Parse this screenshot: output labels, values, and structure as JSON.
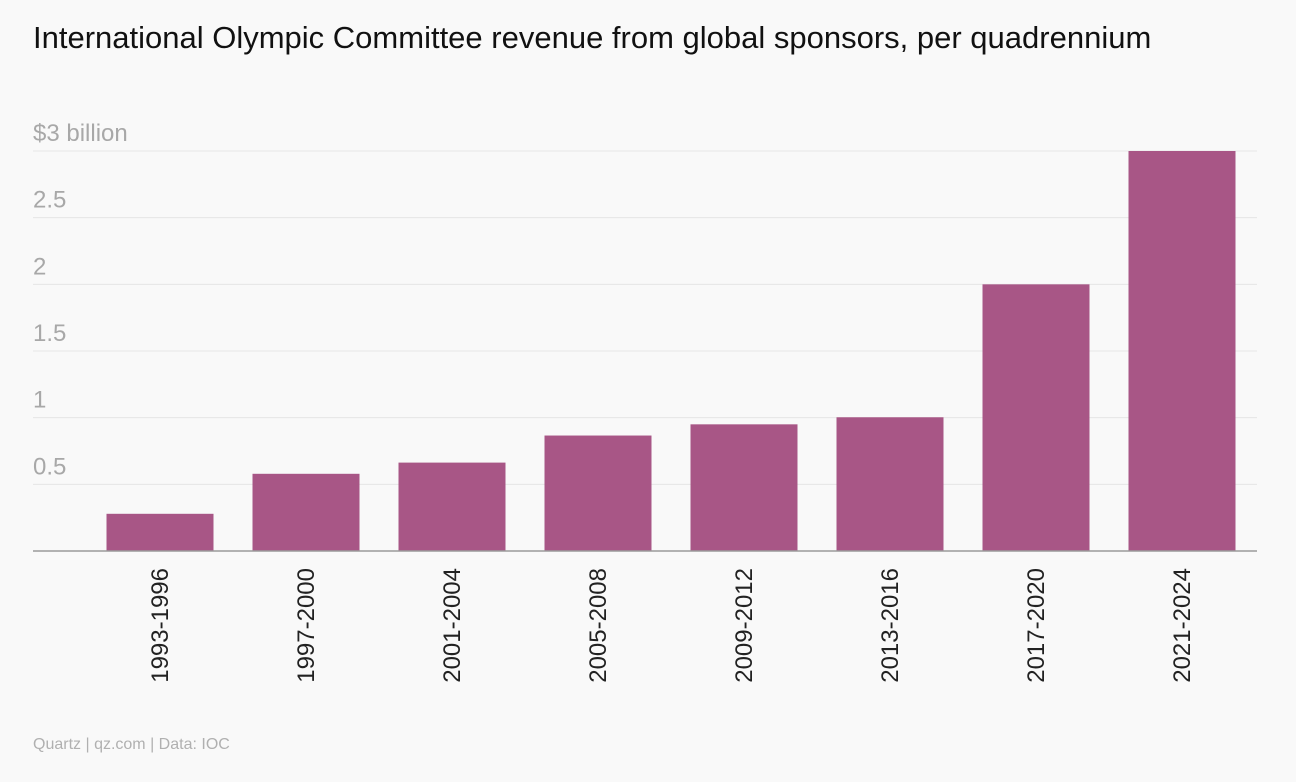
{
  "chart_data": {
    "type": "bar",
    "title": "International Olympic Committee revenue from global sponsors, per quadrennium",
    "categories": [
      "1993-1996",
      "1997-2000",
      "2001-2004",
      "2005-2008",
      "2009-2012",
      "2013-2016",
      "2017-2020",
      "2021-2024"
    ],
    "values": [
      0.279,
      0.579,
      0.663,
      0.866,
      0.95,
      1.003,
      2.0,
      3.0
    ],
    "y_ticks": [
      {
        "value": 0.5,
        "label": "0.5"
      },
      {
        "value": 1,
        "label": "1"
      },
      {
        "value": 1.5,
        "label": "1.5"
      },
      {
        "value": 2,
        "label": "2"
      },
      {
        "value": 2.5,
        "label": "2.5"
      },
      {
        "value": 3,
        "label": "$3 billion"
      }
    ],
    "ylim": [
      0,
      3
    ],
    "grid": true,
    "bar_color": "#a85686",
    "source": "Quartz | qz.com | Data: IOC"
  }
}
